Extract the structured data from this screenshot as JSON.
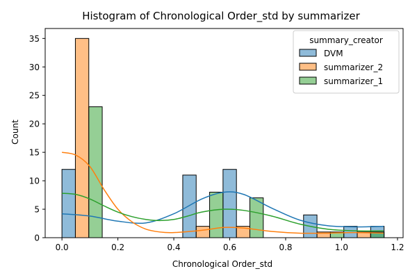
{
  "chart_data": {
    "type": "histogram",
    "title": "Histogram of Chronological Order_std by summarizer",
    "xlabel": "Chronological Order_std",
    "ylabel": "Count",
    "xlim": [
      -0.06,
      1.22
    ],
    "ylim": [
      0,
      36.75
    ],
    "x_ticks": [
      0.0,
      0.2,
      0.4,
      0.6,
      0.8,
      1.0,
      1.2
    ],
    "x_tick_labels": [
      "0.0",
      "0.2",
      "0.4",
      "0.6",
      "0.8",
      "1.0",
      "1.2"
    ],
    "y_ticks": [
      0,
      5,
      10,
      15,
      20,
      25,
      30,
      35
    ],
    "y_tick_labels": [
      "0",
      "5",
      "10",
      "15",
      "20",
      "25",
      "30",
      "35"
    ],
    "bin_edges": [
      0.0,
      0.144,
      0.432,
      0.576,
      0.72,
      0.864,
      1.008,
      1.152
    ],
    "legend": {
      "title": "summary_creator",
      "placement": "top-right",
      "entries": [
        "DVM",
        "summarizer_2",
        "summarizer_1"
      ]
    },
    "series": [
      {
        "name": "DVM",
        "color": "#1f77b4",
        "bars": [
          {
            "x0": 0.0,
            "x1": 0.048,
            "count": 12
          },
          {
            "x0": 0.432,
            "x1": 0.48,
            "count": 11
          },
          {
            "x0": 0.576,
            "x1": 0.624,
            "count": 12
          },
          {
            "x0": 0.864,
            "x1": 0.912,
            "count": 4
          },
          {
            "x0": 1.008,
            "x1": 1.056,
            "count": 2
          },
          {
            "x0": 1.104,
            "x1": 1.152,
            "count": 2
          }
        ],
        "kde": [
          [
            0.0,
            4.2
          ],
          [
            0.1,
            3.8
          ],
          [
            0.2,
            2.9
          ],
          [
            0.3,
            2.6
          ],
          [
            0.4,
            4.2
          ],
          [
            0.5,
            6.8
          ],
          [
            0.58,
            8.0
          ],
          [
            0.65,
            7.6
          ],
          [
            0.75,
            5.2
          ],
          [
            0.85,
            3.1
          ],
          [
            0.95,
            2.1
          ],
          [
            1.05,
            1.9
          ],
          [
            1.15,
            2.0
          ]
        ]
      },
      {
        "name": "summarizer_2",
        "color": "#ff7f0e",
        "bars": [
          {
            "x0": 0.048,
            "x1": 0.096,
            "count": 35
          },
          {
            "x0": 0.48,
            "x1": 0.528,
            "count": 2
          },
          {
            "x0": 0.624,
            "x1": 0.672,
            "count": 2
          },
          {
            "x0": 0.912,
            "x1": 0.96,
            "count": 1
          },
          {
            "x0": 1.056,
            "x1": 1.104,
            "count": 1
          }
        ],
        "kde": [
          [
            0.0,
            15.0
          ],
          [
            0.05,
            14.5
          ],
          [
            0.1,
            12.5
          ],
          [
            0.15,
            8.5
          ],
          [
            0.2,
            5.0
          ],
          [
            0.25,
            2.8
          ],
          [
            0.3,
            1.5
          ],
          [
            0.35,
            1.0
          ],
          [
            0.4,
            0.9
          ],
          [
            0.5,
            1.3
          ],
          [
            0.58,
            1.8
          ],
          [
            0.65,
            1.7
          ],
          [
            0.75,
            1.1
          ],
          [
            0.85,
            0.8
          ],
          [
            0.95,
            0.8
          ],
          [
            1.05,
            0.9
          ],
          [
            1.15,
            0.8
          ]
        ]
      },
      {
        "name": "summarizer_1",
        "color": "#2ca02c",
        "bars": [
          {
            "x0": 0.096,
            "x1": 0.144,
            "count": 23
          },
          {
            "x0": 0.528,
            "x1": 0.576,
            "count": 8
          },
          {
            "x0": 0.672,
            "x1": 0.72,
            "count": 7
          },
          {
            "x0": 0.96,
            "x1": 1.008,
            "count": 1
          },
          {
            "x0": 1.104,
            "x1": 1.152,
            "count": 1
          }
        ],
        "kde": [
          [
            0.0,
            7.8
          ],
          [
            0.05,
            7.6
          ],
          [
            0.1,
            6.8
          ],
          [
            0.15,
            5.6
          ],
          [
            0.2,
            4.5
          ],
          [
            0.25,
            3.7
          ],
          [
            0.3,
            3.2
          ],
          [
            0.35,
            3.0
          ],
          [
            0.4,
            3.2
          ],
          [
            0.45,
            3.8
          ],
          [
            0.5,
            4.5
          ],
          [
            0.58,
            5.0
          ],
          [
            0.65,
            4.8
          ],
          [
            0.75,
            3.8
          ],
          [
            0.85,
            2.4
          ],
          [
            0.95,
            1.5
          ],
          [
            1.05,
            1.2
          ],
          [
            1.15,
            1.2
          ]
        ]
      }
    ]
  }
}
